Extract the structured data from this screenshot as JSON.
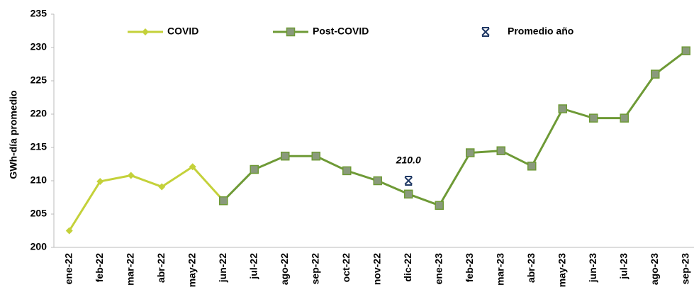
{
  "chart_data": {
    "type": "line",
    "y_label": "GWh-día promedio",
    "categories": [
      "ene-22",
      "feb-22",
      "mar-22",
      "abr-22",
      "may-22",
      "jun-22",
      "jul-22",
      "ago-22",
      "sep-22",
      "oct-22",
      "nov-22",
      "dic-22",
      "ene-23",
      "feb-23",
      "mar-23",
      "abr-23",
      "may-23",
      "jun-23",
      "jul-23",
      "ago-23",
      "sep-23"
    ],
    "series": [
      {
        "name": "COVID",
        "color": "#c4d13a",
        "marker": "diamond",
        "values": [
          202.5,
          209.9,
          210.8,
          209.1,
          212.1,
          207.0,
          null,
          null,
          null,
          null,
          null,
          null,
          null,
          null,
          null,
          null,
          null,
          null,
          null,
          null,
          null
        ]
      },
      {
        "name": "Post-COVID",
        "color": "#6e9a36",
        "marker": "square",
        "values": [
          null,
          null,
          null,
          null,
          null,
          207.0,
          211.7,
          213.7,
          213.7,
          211.5,
          210.0,
          208.0,
          206.3,
          214.2,
          214.5,
          212.2,
          220.8,
          219.4,
          219.4,
          226.0,
          229.5
        ]
      },
      {
        "name": "Promedio año",
        "color": "#1f3864",
        "marker": "star",
        "values": [
          null,
          null,
          null,
          null,
          null,
          null,
          null,
          null,
          null,
          null,
          null,
          210.0,
          null,
          null,
          null,
          null,
          null,
          null,
          null,
          null,
          null
        ],
        "value_labels": [
          null,
          null,
          null,
          null,
          null,
          null,
          null,
          null,
          null,
          null,
          null,
          "210.0",
          null,
          null,
          null,
          null,
          null,
          null,
          null,
          null,
          null
        ]
      }
    ],
    "ylim": [
      200,
      235
    ],
    "yticks": [
      200,
      205,
      210,
      215,
      220,
      225,
      230,
      235
    ],
    "grid": false
  }
}
